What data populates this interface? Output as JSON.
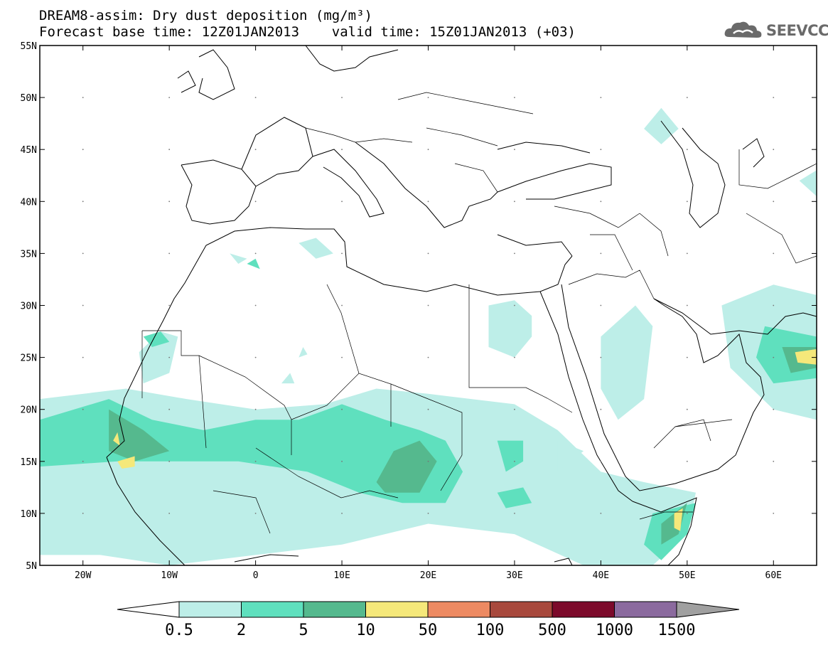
{
  "header": {
    "title_line1": "DREAM8-assim: Dry dust deposition (mg/m³)",
    "title_line2": "Forecast base time: 12Z01JAN2013    valid time: 15Z01JAN2013 (+03)"
  },
  "logo": {
    "text": "SEEVCCC",
    "icon": "cloud-icon",
    "color": "#6a6a6a"
  },
  "map": {
    "lon_range": [
      -25,
      65
    ],
    "lat_range": [
      5,
      55
    ],
    "lat_ticks": [
      "55N",
      "50N",
      "45N",
      "40N",
      "35N",
      "30N",
      "25N",
      "20N",
      "15N",
      "10N",
      "5N"
    ],
    "lon_ticks": [
      "20W",
      "10W",
      "0",
      "10E",
      "20E",
      "30E",
      "40E",
      "50E",
      "60E"
    ],
    "coastline_color": "#000000",
    "fields": [
      {
        "level": "0.5-2",
        "color": "#bdeee8",
        "regions": [
          [
            [
              -25,
              21
            ],
            [
              -15,
              22
            ],
            [
              -8,
              21
            ],
            [
              0,
              20
            ],
            [
              8,
              20.5
            ],
            [
              14,
              22
            ],
            [
              20,
              21.5
            ],
            [
              25,
              21
            ],
            [
              30,
              20.5
            ],
            [
              35,
              18
            ],
            [
              40,
              14
            ],
            [
              45,
              13
            ],
            [
              51,
              12
            ],
            [
              50,
              8
            ],
            [
              46,
              5
            ],
            [
              38,
              5
            ],
            [
              30,
              8
            ],
            [
              20,
              9
            ],
            [
              10,
              7
            ],
            [
              0,
              6
            ],
            [
              -10,
              5
            ],
            [
              -18,
              6
            ],
            [
              -25,
              6
            ]
          ],
          [
            [
              -13.5,
              25.5
            ],
            [
              -11,
              27.5
            ],
            [
              -9,
              27
            ],
            [
              -10,
              23.5
            ],
            [
              -13,
              22.5
            ]
          ],
          [
            [
              27,
              30
            ],
            [
              30,
              30.5
            ],
            [
              32,
              29
            ],
            [
              32,
              27
            ],
            [
              30,
              25
            ],
            [
              27,
              26
            ]
          ],
          [
            [
              40,
              27
            ],
            [
              44,
              30
            ],
            [
              46,
              28
            ],
            [
              45,
              21
            ],
            [
              42,
              19
            ],
            [
              40,
              22
            ]
          ],
          [
            [
              54,
              30
            ],
            [
              60,
              32
            ],
            [
              65,
              31
            ],
            [
              65,
              19
            ],
            [
              60,
              20
            ],
            [
              55,
              24
            ]
          ],
          [
            [
              5,
              36
            ],
            [
              7,
              34.5
            ],
            [
              9,
              35
            ],
            [
              7,
              36.5
            ]
          ],
          [
            [
              -3,
              35
            ],
            [
              -2,
              34
            ],
            [
              -1,
              34.5
            ]
          ],
          [
            [
              45,
              47
            ],
            [
              47,
              49
            ],
            [
              49,
              47
            ],
            [
              47,
              45.5
            ]
          ],
          [
            [
              63,
              42
            ],
            [
              65,
              43
            ],
            [
              65,
              40.5
            ]
          ],
          [
            [
              35,
              17
            ],
            [
              35,
              14
            ],
            [
              38,
              16
            ]
          ],
          [
            [
              5,
              25
            ],
            [
              5.5,
              26
            ],
            [
              6,
              25.3
            ]
          ],
          [
            [
              3,
              22.5
            ],
            [
              4,
              23.5
            ],
            [
              4.5,
              22.5
            ]
          ]
        ]
      },
      {
        "level": "2-5",
        "color": "#5fe0be",
        "regions": [
          [
            [
              -25,
              19
            ],
            [
              -17,
              21
            ],
            [
              -12,
              19
            ],
            [
              -6,
              18
            ],
            [
              0,
              19
            ],
            [
              5,
              19
            ],
            [
              10,
              20.5
            ],
            [
              15,
              19
            ],
            [
              19,
              18
            ],
            [
              22,
              17
            ],
            [
              24,
              14
            ],
            [
              22,
              11
            ],
            [
              17,
              11
            ],
            [
              12,
              12
            ],
            [
              6,
              14
            ],
            [
              -2,
              15
            ],
            [
              -10,
              15
            ],
            [
              -16,
              15
            ],
            [
              -25,
              14.5
            ]
          ],
          [
            [
              -13,
              27
            ],
            [
              -11,
              27.5
            ],
            [
              -10,
              26.5
            ],
            [
              -12,
              26
            ]
          ],
          [
            [
              28,
              17
            ],
            [
              31,
              17
            ],
            [
              31,
              15
            ],
            [
              29,
              14
            ]
          ],
          [
            [
              28,
              12
            ],
            [
              31,
              12.5
            ],
            [
              32,
              11
            ],
            [
              29,
              10.5
            ]
          ],
          [
            [
              46,
              10
            ],
            [
              51,
              11
            ],
            [
              50,
              8
            ],
            [
              47,
              5.5
            ],
            [
              45,
              7
            ]
          ],
          [
            [
              59,
              28
            ],
            [
              65,
              27
            ],
            [
              65,
              23
            ],
            [
              60,
              22.5
            ],
            [
              58,
              25
            ]
          ],
          [
            [
              -1,
              34
            ],
            [
              0,
              34.5
            ],
            [
              0.5,
              33.5
            ]
          ]
        ]
      },
      {
        "level": "5-10",
        "color": "#55b98e",
        "regions": [
          [
            [
              -17,
              20
            ],
            [
              -13,
              18
            ],
            [
              -10,
              16
            ],
            [
              -14,
              15
            ],
            [
              -17,
              16
            ]
          ],
          [
            [
              14,
              13
            ],
            [
              16,
              16
            ],
            [
              19,
              17
            ],
            [
              21,
              15
            ],
            [
              19,
              12
            ],
            [
              15,
              12
            ]
          ],
          [
            [
              47,
              9
            ],
            [
              50,
              11
            ],
            [
              49,
              8
            ],
            [
              47,
              7
            ]
          ],
          [
            [
              61,
              26
            ],
            [
              65,
              26
            ],
            [
              65,
              24
            ],
            [
              62,
              23.5
            ]
          ]
        ]
      },
      {
        "level": "10-50",
        "color": "#f5e87a",
        "regions": [
          [
            [
              -16,
              15
            ],
            [
              -14,
              15.5
            ],
            [
              -14,
              14.5
            ],
            [
              -15.5,
              14.3
            ]
          ],
          [
            [
              -16.5,
              17
            ],
            [
              -16,
              17.8
            ],
            [
              -15.7,
              16.5
            ]
          ],
          [
            [
              48.5,
              10
            ],
            [
              49.5,
              10.5
            ],
            [
              49.2,
              8.3
            ],
            [
              48.5,
              8.6
            ]
          ],
          [
            [
              62.5,
              25.5
            ],
            [
              65,
              25.8
            ],
            [
              65,
              24.3
            ],
            [
              62.8,
              24.5
            ]
          ]
        ]
      }
    ]
  },
  "legend": {
    "labels": [
      "0.5",
      "2",
      "5",
      "10",
      "50",
      "100",
      "500",
      "1000",
      "1500"
    ],
    "colors": [
      "#bdeee8",
      "#5fe0be",
      "#55b98e",
      "#f5e87a",
      "#ed8a62",
      "#a8493d",
      "#7c0a2b",
      "#8b6a9e"
    ],
    "low_arrow_color": "#ffffff",
    "high_arrow_color": "#a0a0a0"
  }
}
